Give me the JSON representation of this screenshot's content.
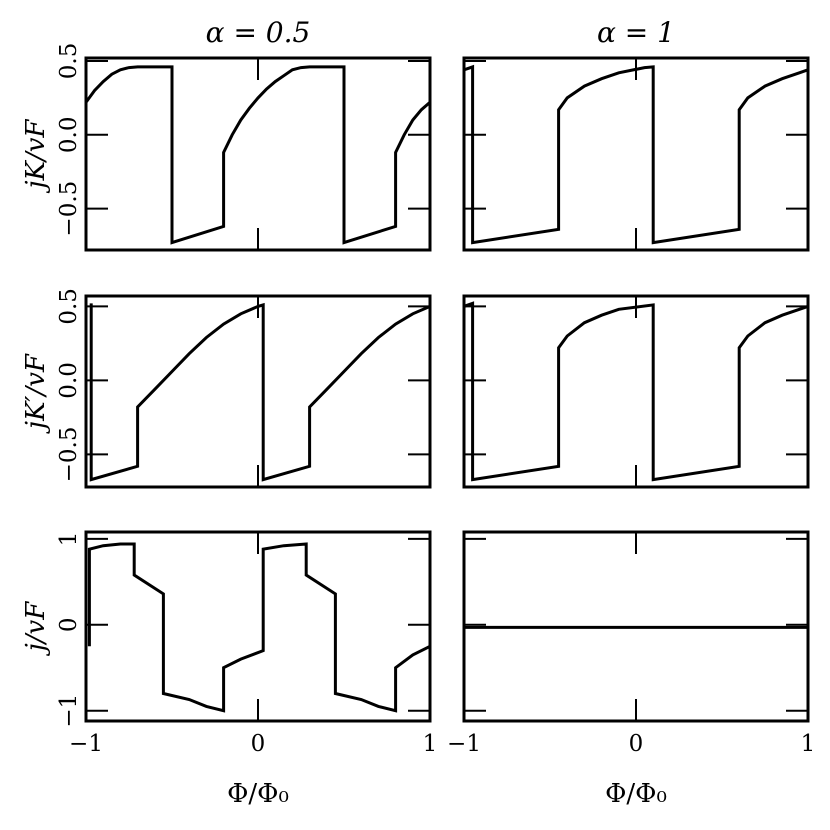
{
  "column_titles": [
    "α = 0.5",
    "α = 1"
  ],
  "x_label": "Φ/Φ₀",
  "chart_data": [
    {
      "type": "line",
      "row": 0,
      "col": 0,
      "ylabel": "jK/vF",
      "xlim": [
        -1,
        1
      ],
      "ylim": [
        -0.78,
        0.52
      ],
      "xticks": [
        -1,
        0,
        1
      ],
      "yticks": [
        0.5,
        0.0,
        -0.5
      ],
      "ytick_labels": [
        "0.5",
        "0.0",
        "−0.5"
      ],
      "show_yticklabels": true,
      "show_xticklabels": false,
      "series": [
        {
          "points": [
            [
              -1,
              0.22
            ],
            [
              -0.95,
              0.3
            ],
            [
              -0.9,
              0.36
            ],
            [
              -0.85,
              0.41
            ],
            [
              -0.8,
              0.44
            ],
            [
              -0.75,
              0.455
            ],
            [
              -0.7,
              0.46
            ],
            [
              -0.7,
              0.46
            ],
            [
              -0.5,
              0.46
            ],
            [
              -0.5,
              -0.73
            ],
            [
              -0.2,
              -0.62
            ],
            [
              -0.2,
              -0.12
            ],
            [
              -0.15,
              0.0
            ],
            [
              -0.1,
              0.1
            ],
            [
              -0.05,
              0.18
            ],
            [
              0,
              0.25
            ],
            [
              0.05,
              0.31
            ],
            [
              0.1,
              0.36
            ],
            [
              0.15,
              0.4
            ],
            [
              0.2,
              0.44
            ],
            [
              0.25,
              0.455
            ],
            [
              0.3,
              0.46
            ],
            [
              0.5,
              0.46
            ],
            [
              0.5,
              -0.73
            ],
            [
              0.8,
              -0.62
            ],
            [
              0.8,
              -0.12
            ],
            [
              0.85,
              0.0
            ],
            [
              0.9,
              0.1
            ],
            [
              0.95,
              0.17
            ],
            [
              1,
              0.22
            ]
          ]
        }
      ]
    },
    {
      "type": "line",
      "row": 0,
      "col": 1,
      "xlim": [
        -1,
        1
      ],
      "ylim": [
        -0.78,
        0.52
      ],
      "xticks": [
        -1,
        0,
        1
      ],
      "yticks": [
        0.5,
        0.0,
        -0.5
      ],
      "ytick_labels": [],
      "show_yticklabels": false,
      "show_xticklabels": false,
      "series": [
        {
          "points": [
            [
              -1,
              0.44
            ],
            [
              -0.95,
              0.46
            ],
            [
              -0.95,
              -0.73
            ],
            [
              -0.45,
              -0.64
            ],
            [
              -0.45,
              0.17
            ],
            [
              -0.4,
              0.25
            ],
            [
              -0.3,
              0.33
            ],
            [
              -0.2,
              0.38
            ],
            [
              -0.1,
              0.42
            ],
            [
              0.05,
              0.455
            ],
            [
              0.1,
              0.46
            ],
            [
              0.1,
              -0.73
            ],
            [
              0.6,
              -0.64
            ],
            [
              0.6,
              0.17
            ],
            [
              0.65,
              0.25
            ],
            [
              0.75,
              0.33
            ],
            [
              0.85,
              0.38
            ],
            [
              0.95,
              0.42
            ],
            [
              1,
              0.44
            ]
          ]
        }
      ]
    },
    {
      "type": "line",
      "row": 1,
      "col": 0,
      "ylabel": "jK′/vF",
      "xlim": [
        -1,
        1
      ],
      "ylim": [
        -0.72,
        0.57
      ],
      "xticks": [
        -1,
        0,
        1
      ],
      "yticks": [
        0.5,
        0.0,
        -0.5
      ],
      "ytick_labels": [
        "0.5",
        "0.0",
        "−0.5"
      ],
      "show_yticklabels": true,
      "show_xticklabels": false,
      "series": [
        {
          "points": [
            [
              -0.97,
              0.52
            ],
            [
              -0.97,
              -0.67
            ],
            [
              -0.7,
              -0.58
            ],
            [
              -0.7,
              -0.18
            ],
            [
              -0.6,
              -0.06
            ],
            [
              -0.5,
              0.06
            ],
            [
              -0.4,
              0.18
            ],
            [
              -0.3,
              0.29
            ],
            [
              -0.2,
              0.38
            ],
            [
              -0.1,
              0.45
            ],
            [
              0,
              0.5
            ],
            [
              0.03,
              0.51
            ],
            [
              0.03,
              -0.67
            ],
            [
              0.3,
              -0.58
            ],
            [
              0.3,
              -0.18
            ],
            [
              0.4,
              -0.06
            ],
            [
              0.5,
              0.06
            ],
            [
              0.6,
              0.18
            ],
            [
              0.7,
              0.29
            ],
            [
              0.8,
              0.38
            ],
            [
              0.9,
              0.45
            ],
            [
              1,
              0.5
            ]
          ]
        }
      ]
    },
    {
      "type": "line",
      "row": 1,
      "col": 1,
      "xlim": [
        -1,
        1
      ],
      "ylim": [
        -0.72,
        0.57
      ],
      "xticks": [
        -1,
        0,
        1
      ],
      "yticks": [
        0.5,
        0.0,
        -0.5
      ],
      "ytick_labels": [],
      "show_yticklabels": false,
      "show_xticklabels": false,
      "series": [
        {
          "points": [
            [
              -1,
              0.5
            ],
            [
              -0.95,
              0.52
            ],
            [
              -0.95,
              -0.67
            ],
            [
              -0.45,
              -0.58
            ],
            [
              -0.45,
              0.22
            ],
            [
              -0.4,
              0.3
            ],
            [
              -0.3,
              0.39
            ],
            [
              -0.2,
              0.44
            ],
            [
              -0.1,
              0.48
            ],
            [
              0.1,
              0.51
            ],
            [
              0.1,
              -0.67
            ],
            [
              0.6,
              -0.58
            ],
            [
              0.6,
              0.22
            ],
            [
              0.65,
              0.3
            ],
            [
              0.75,
              0.39
            ],
            [
              0.85,
              0.44
            ],
            [
              0.95,
              0.48
            ],
            [
              1,
              0.5
            ]
          ]
        }
      ]
    },
    {
      "type": "line",
      "row": 2,
      "col": 0,
      "ylabel": "j/vF",
      "xlim": [
        -1,
        1
      ],
      "ylim": [
        -1.12,
        1.08
      ],
      "xticks": [
        -1,
        0,
        1
      ],
      "yticks": [
        1,
        0,
        -1
      ],
      "ytick_labels": [
        "1",
        "0",
        "−1"
      ],
      "xtick_labels": [
        "−1",
        "0",
        "1"
      ],
      "show_yticklabels": true,
      "show_xticklabels": true,
      "series": [
        {
          "points": [
            [
              -0.98,
              -0.25
            ],
            [
              -0.98,
              0.88
            ],
            [
              -0.9,
              0.92
            ],
            [
              -0.8,
              0.94
            ],
            [
              -0.72,
              0.94
            ],
            [
              -0.72,
              0.58
            ],
            [
              -0.55,
              0.36
            ],
            [
              -0.55,
              -0.8
            ],
            [
              -0.4,
              -0.87
            ],
            [
              -0.3,
              -0.95
            ],
            [
              -0.2,
              -1.0
            ],
            [
              -0.2,
              -0.5
            ],
            [
              -0.1,
              -0.4
            ],
            [
              0.03,
              -0.3
            ],
            [
              0.03,
              0.88
            ],
            [
              0.15,
              0.92
            ],
            [
              0.28,
              0.94
            ],
            [
              0.28,
              0.58
            ],
            [
              0.45,
              0.36
            ],
            [
              0.45,
              -0.8
            ],
            [
              0.6,
              -0.87
            ],
            [
              0.7,
              -0.95
            ],
            [
              0.8,
              -1.0
            ],
            [
              0.8,
              -0.5
            ],
            [
              0.9,
              -0.35
            ],
            [
              1,
              -0.25
            ]
          ]
        }
      ]
    },
    {
      "type": "line",
      "row": 2,
      "col": 1,
      "xlim": [
        -1,
        1
      ],
      "ylim": [
        -1.12,
        1.08
      ],
      "xticks": [
        -1,
        0,
        1
      ],
      "yticks": [
        1,
        0,
        -1
      ],
      "ytick_labels": [],
      "xtick_labels": [
        "−1",
        "0",
        "1"
      ],
      "show_yticklabels": false,
      "show_xticklabels": true,
      "series": [
        {
          "points": [
            [
              -1,
              -0.03
            ],
            [
              1,
              -0.03
            ]
          ]
        }
      ]
    }
  ]
}
